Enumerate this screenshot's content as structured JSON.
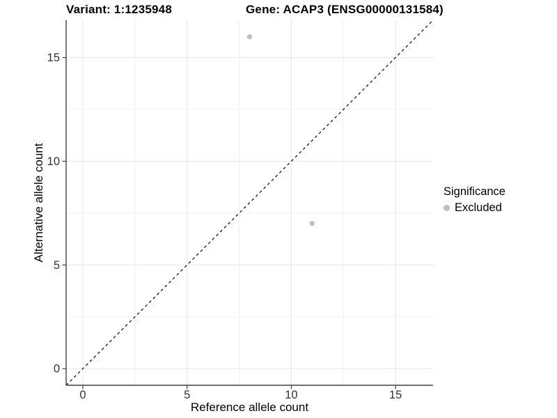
{
  "header": {
    "variant_title": "Variant: 1:1235948",
    "gene_title": "Gene: ACAP3 (ENSG00000131584)"
  },
  "legend": {
    "title": "Significance",
    "items": [
      {
        "label": "Excluded",
        "color": "#bebebe"
      }
    ]
  },
  "chart_data": {
    "type": "scatter",
    "title": "Variant: 1:1235948   Gene: ACAP3 (ENSG00000131584)",
    "xlabel": "Reference allele count",
    "ylabel": "Alternative allele count",
    "xlim": [
      -0.8,
      16.8
    ],
    "ylim": [
      -0.8,
      16.8
    ],
    "xticks": [
      0,
      5,
      10,
      15
    ],
    "yticks": [
      0,
      5,
      10,
      15
    ],
    "major_grid": [
      0,
      5,
      10,
      15
    ],
    "minor_grid": [
      2.5,
      7.5,
      12.5
    ],
    "grid": true,
    "legend_position": "right",
    "legend_title": "Significance",
    "series": [
      {
        "name": "Excluded",
        "color": "#bebebe",
        "points": [
          [
            8,
            16
          ],
          [
            11,
            7
          ]
        ]
      }
    ],
    "reference_line": {
      "kind": "identity",
      "equation": "y = x",
      "style": "dashed",
      "color": "#000000"
    }
  },
  "colors": {
    "background": "#ffffff",
    "grid_major": "#e6e6e6",
    "grid_minor": "#f1f1f1",
    "axis_line": "#404040",
    "axis_text": "#333333",
    "point": "#bebebe",
    "title_text": "#000000"
  }
}
